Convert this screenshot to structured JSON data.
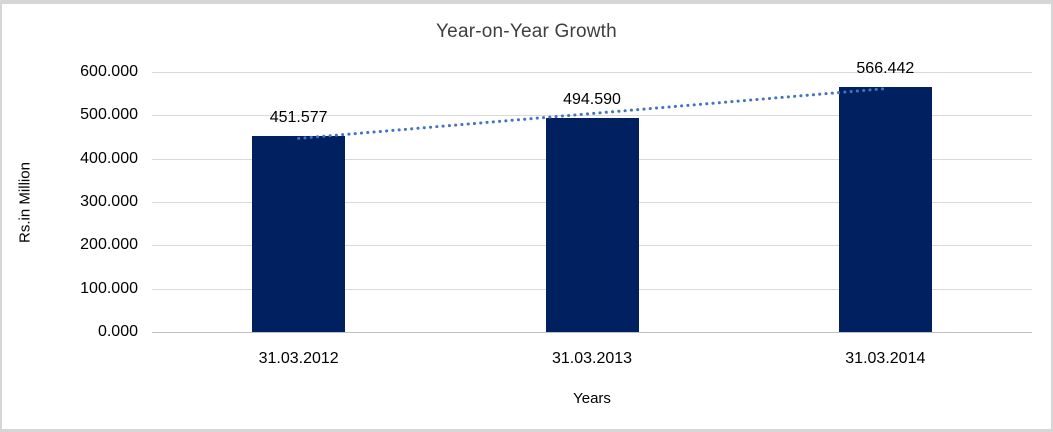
{
  "chart_data": {
    "type": "bar",
    "title": "Year-on-Year Growth",
    "categories": [
      "31.03.2012",
      "31.03.2013",
      "31.03.2014"
    ],
    "values": [
      451.577,
      494.59,
      566.442
    ],
    "value_label_decimals": 3,
    "xlabel": "Years",
    "ylabel": "Rs.in Million",
    "ylim": [
      0,
      600
    ],
    "ytick_step": 100,
    "ytick_labels": [
      "0.000",
      "100.000",
      "200.000",
      "300.000",
      "400.000",
      "500.000",
      "600.000"
    ],
    "grid": true,
    "legend": "none",
    "trendline": {
      "type": "linear",
      "style": "dotted",
      "color": "#4472c4"
    },
    "colors": {
      "bar": "#002060",
      "gridline": "#d9d9d9",
      "axis_line": "#bfbfbf",
      "title_text": "#3f3f3f",
      "label_text": "#000000",
      "frame_border": "#d6d6d6",
      "background": "#ffffff"
    }
  }
}
